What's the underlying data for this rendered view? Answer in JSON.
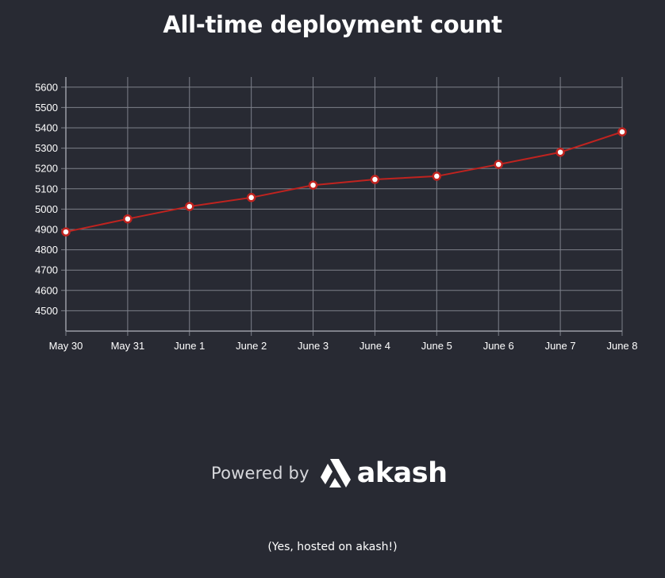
{
  "title": "All-time deployment count",
  "chart_data": {
    "type": "line",
    "title": "All-time deployment count",
    "xlabel": "",
    "ylabel": "",
    "categories": [
      "May 30",
      "May 31",
      "June 1",
      "June 2",
      "June 3",
      "June 4",
      "June 5",
      "June 6",
      "June 7",
      "June 8"
    ],
    "series": [
      {
        "values": [
          4888,
          4952,
          5013,
          5057,
          5118,
          5146,
          5162,
          5220,
          5280,
          5380
        ]
      }
    ],
    "yticks": [
      4500,
      4600,
      4700,
      4800,
      4900,
      5000,
      5100,
      5200,
      5300,
      5400,
      5500,
      5600
    ],
    "ylim": [
      4400,
      5650
    ],
    "grid": true,
    "legend": "none",
    "colors": {
      "line": "#c0231f",
      "marker_fill": "#ffffff",
      "grid": "#7d808a",
      "axis": "#9a9da6"
    }
  },
  "footer": {
    "powered_by": "Powered by",
    "brand": "akash",
    "logo_icon": "akash-logo-icon",
    "note": "(Yes, hosted on akash!)"
  }
}
